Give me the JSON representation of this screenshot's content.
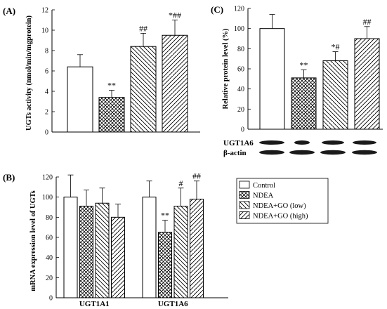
{
  "chart_data": [
    {
      "panel": "(A)",
      "type": "bar",
      "ylabel": "UGTs activity (nmol/min/mgprotein)",
      "ylim": [
        0,
        12
      ],
      "yticks": [
        0,
        2,
        4,
        6,
        8,
        10,
        12
      ],
      "categories": [
        "Control",
        "NDEA",
        "NDEA+GO (low)",
        "NDEA+GO (high)"
      ],
      "values": [
        6.4,
        3.4,
        8.4,
        9.5
      ],
      "errors": [
        1.2,
        0.7,
        1.3,
        1.5
      ],
      "annotations": [
        "",
        "**",
        "##",
        "*##"
      ]
    },
    {
      "panel": "(B)",
      "type": "bar",
      "ylabel": "mRNA expression level of UGTs",
      "ylim": [
        0,
        120
      ],
      "yticks": [
        0,
        20,
        40,
        60,
        80,
        100,
        120
      ],
      "groups": [
        "UGT1A1",
        "UGT1A6"
      ],
      "series": [
        {
          "name": "Control",
          "values": [
            100,
            100
          ],
          "errors": [
            22,
            16
          ]
        },
        {
          "name": "NDEA",
          "values": [
            91,
            65
          ],
          "errors": [
            16,
            12
          ]
        },
        {
          "name": "NDEA+GO (low)",
          "values": [
            94,
            91
          ],
          "errors": [
            15,
            18
          ]
        },
        {
          "name": "NDEA+GO (high)",
          "values": [
            80,
            98
          ],
          "errors": [
            13,
            18
          ]
        }
      ],
      "annotations": [
        [
          "",
          "",
          "",
          ""
        ],
        [
          "",
          "**",
          "#",
          "##"
        ]
      ]
    },
    {
      "panel": "(C)",
      "type": "bar",
      "ylabel": "Relative protein level (%)",
      "ylim": [
        0,
        120
      ],
      "yticks": [
        0,
        20,
        40,
        60,
        80,
        100,
        120
      ],
      "categories": [
        "Control",
        "NDEA",
        "NDEA+GO (low)",
        "NDEA+GO (high)"
      ],
      "values": [
        100,
        51,
        68,
        90
      ],
      "errors": [
        14,
        8,
        9,
        12
      ],
      "annotations": [
        "",
        "**",
        "*#",
        "##"
      ],
      "blot_labels": [
        "UGT1A6",
        "β-actin"
      ]
    }
  ],
  "legend": {
    "items": [
      {
        "label": "Control",
        "pattern": "none"
      },
      {
        "label": "NDEA",
        "pattern": "cross"
      },
      {
        "label": "NDEA+GO (low)",
        "pattern": "back"
      },
      {
        "label": "NDEA+GO (high)",
        "pattern": "fwd"
      }
    ]
  },
  "colors": {
    "bar_edge": "#000000",
    "bar_fill": "#ffffff",
    "blot": "#1a1a1a"
  }
}
